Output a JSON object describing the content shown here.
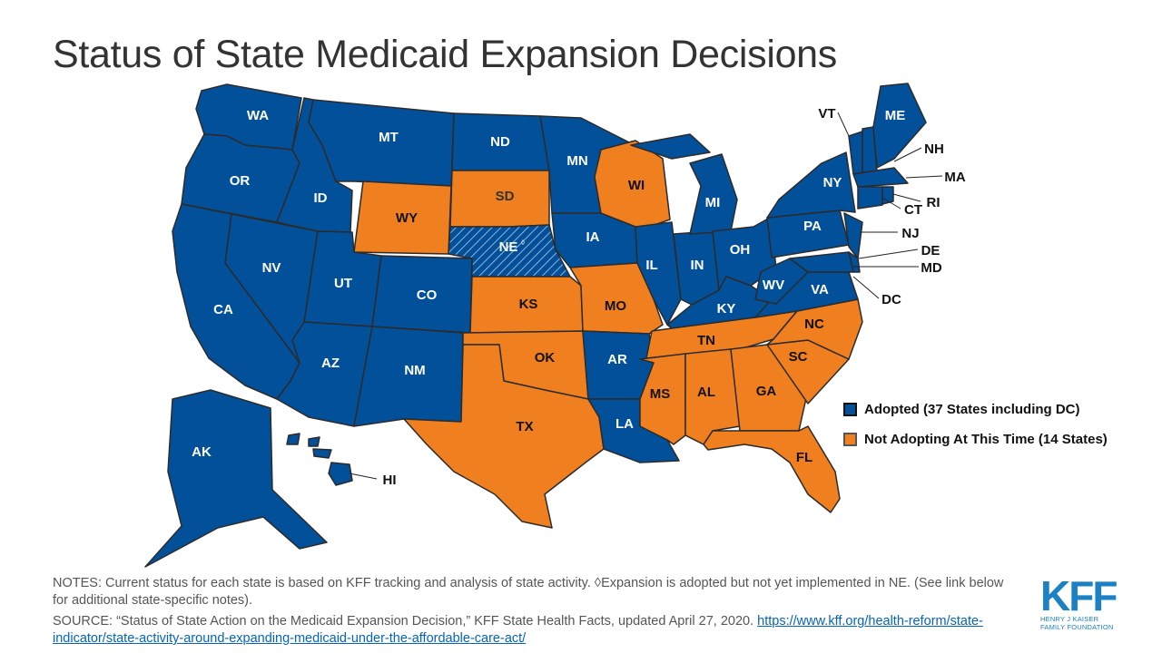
{
  "title": "Status of State Medicaid Expansion Decisions",
  "colors": {
    "adopted": "#03509a",
    "not_adopting": "#f07f1f",
    "border": "#2b2b2b"
  },
  "legend": [
    {
      "key": "adopted",
      "label": "Adopted (37 States including DC)"
    },
    {
      "key": "not_adopting",
      "label": "Not Adopting At This Time (14 States)"
    }
  ],
  "states": [
    {
      "abbr": "WA",
      "status": "adopted"
    },
    {
      "abbr": "OR",
      "status": "adopted"
    },
    {
      "abbr": "CA",
      "status": "adopted"
    },
    {
      "abbr": "NV",
      "status": "adopted"
    },
    {
      "abbr": "ID",
      "status": "adopted"
    },
    {
      "abbr": "MT",
      "status": "adopted"
    },
    {
      "abbr": "WY",
      "status": "not_adopting"
    },
    {
      "abbr": "UT",
      "status": "adopted"
    },
    {
      "abbr": "CO",
      "status": "adopted"
    },
    {
      "abbr": "AZ",
      "status": "adopted"
    },
    {
      "abbr": "NM",
      "status": "adopted"
    },
    {
      "abbr": "ND",
      "status": "adopted"
    },
    {
      "abbr": "SD",
      "status": "not_adopting"
    },
    {
      "abbr": "NE",
      "status": "adopted",
      "note_mark": "◊",
      "hatched": true
    },
    {
      "abbr": "KS",
      "status": "not_adopting"
    },
    {
      "abbr": "OK",
      "status": "not_adopting"
    },
    {
      "abbr": "TX",
      "status": "not_adopting"
    },
    {
      "abbr": "MN",
      "status": "adopted"
    },
    {
      "abbr": "IA",
      "status": "adopted"
    },
    {
      "abbr": "MO",
      "status": "not_adopting"
    },
    {
      "abbr": "AR",
      "status": "adopted"
    },
    {
      "abbr": "LA",
      "status": "adopted"
    },
    {
      "abbr": "WI",
      "status": "not_adopting"
    },
    {
      "abbr": "IL",
      "status": "adopted"
    },
    {
      "abbr": "IN",
      "status": "adopted"
    },
    {
      "abbr": "MI",
      "status": "adopted"
    },
    {
      "abbr": "OH",
      "status": "adopted"
    },
    {
      "abbr": "KY",
      "status": "adopted"
    },
    {
      "abbr": "TN",
      "status": "not_adopting"
    },
    {
      "abbr": "MS",
      "status": "not_adopting"
    },
    {
      "abbr": "AL",
      "status": "not_adopting"
    },
    {
      "abbr": "GA",
      "status": "not_adopting"
    },
    {
      "abbr": "FL",
      "status": "not_adopting"
    },
    {
      "abbr": "SC",
      "status": "not_adopting"
    },
    {
      "abbr": "NC",
      "status": "not_adopting"
    },
    {
      "abbr": "VA",
      "status": "adopted"
    },
    {
      "abbr": "WV",
      "status": "adopted"
    },
    {
      "abbr": "PA",
      "status": "adopted"
    },
    {
      "abbr": "NY",
      "status": "adopted"
    },
    {
      "abbr": "NJ",
      "status": "adopted"
    },
    {
      "abbr": "DE",
      "status": "adopted"
    },
    {
      "abbr": "MD",
      "status": "adopted"
    },
    {
      "abbr": "DC",
      "status": "adopted"
    },
    {
      "abbr": "VT",
      "status": "adopted"
    },
    {
      "abbr": "NH",
      "status": "adopted"
    },
    {
      "abbr": "ME",
      "status": "adopted"
    },
    {
      "abbr": "MA",
      "status": "adopted"
    },
    {
      "abbr": "CT",
      "status": "adopted"
    },
    {
      "abbr": "RI",
      "status": "adopted"
    },
    {
      "abbr": "AK",
      "status": "adopted"
    },
    {
      "abbr": "HI",
      "status": "adopted"
    }
  ],
  "notes": "NOTES: Current status for each state is based on KFF tracking and analysis of state activity. ◊Expansion is adopted but not yet implemented in NE. (See link below for additional state-specific notes).",
  "source_text": "SOURCE: “Status of State Action on the Medicaid Expansion Decision,” KFF State Health Facts, updated April 27, 2020.",
  "source_link": "https://www.kff.org/health-reform/state-indicator/state-activity-around-expanding-medicaid-under-the-affordable-care-act/",
  "logo": {
    "mark": "KFF",
    "line1": "HENRY J KAISER",
    "line2": "FAMILY FOUNDATION"
  }
}
